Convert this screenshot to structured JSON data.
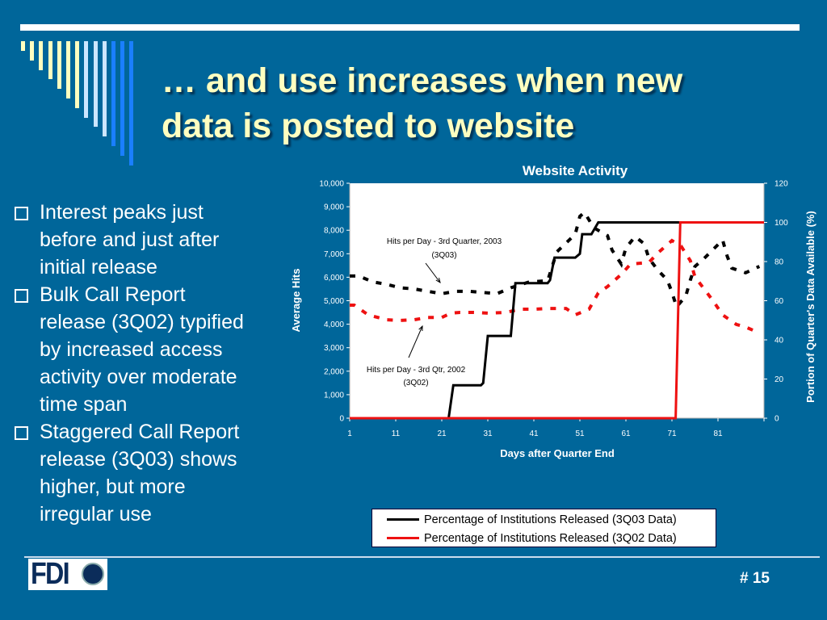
{
  "slide": {
    "title_line1": "… and use increases when new",
    "title_line2": "data is posted to website",
    "bullets": [
      [
        "Interest peaks just",
        "before and just after",
        "initial release"
      ],
      [
        "Bulk Call Report",
        "release (3Q02) typified",
        "by increased access",
        "activity over moderate",
        "time span"
      ],
      [
        "Staggered Call Report",
        "release (3Q03) shows",
        "higher, but more",
        "irregular use"
      ]
    ],
    "logo_text": "FDIC",
    "page_number": "# 15"
  },
  "colors": {
    "background": "#00669a",
    "title": "#ffffc0",
    "series_3q03": "#000000",
    "series_3q02": "#ee1111"
  },
  "chart_data": {
    "type": "line",
    "title": "Website Activity",
    "xlabel": "Days after Quarter End",
    "ylabel": "Average Hits",
    "ylabel_right": "Portion of Quarter's Data Available (%)",
    "xlim": [
      1,
      91
    ],
    "ylim": [
      0,
      10000
    ],
    "ylim_right": [
      0,
      120
    ],
    "x_ticks": [
      "1",
      "11",
      "21",
      "31",
      "41",
      "51",
      "61",
      "71",
      "81"
    ],
    "y_ticks": [
      "0",
      "1,000",
      "2,000",
      "3,000",
      "4,000",
      "5,000",
      "6,000",
      "7,000",
      "8,000",
      "9,000",
      "10,000"
    ],
    "y_ticks_right": [
      "0",
      "20",
      "40",
      "60",
      "80",
      "100",
      "120"
    ],
    "grid": false,
    "legend_position": "bottom",
    "annotations": [
      {
        "line1": "Hits per Day - 3rd Quarter, 2003",
        "line2": "(3Q03)"
      },
      {
        "line1": "Hits per Day - 3rd Qtr, 2002",
        "line2": "(3Q02)"
      }
    ],
    "series": [
      {
        "name": "Hits per Day - 3rd Quarter, 2003 (3Q03)",
        "axis": "left",
        "style": "dashed",
        "color": "#000000",
        "x": [
          1,
          3,
          6,
          9,
          12,
          15,
          18,
          21,
          24,
          27,
          30,
          33,
          36,
          40,
          44,
          46,
          50,
          51,
          52,
          54,
          57,
          58,
          60,
          61,
          63,
          65,
          66,
          68,
          70,
          71,
          72,
          74,
          75,
          76,
          78,
          81,
          82,
          83,
          84,
          87,
          90
        ],
        "y": [
          6050,
          6050,
          5800,
          5700,
          5550,
          5500,
          5400,
          5300,
          5400,
          5400,
          5350,
          5300,
          5550,
          5800,
          5850,
          7080,
          7830,
          8590,
          8760,
          8110,
          7770,
          7150,
          6560,
          7250,
          7730,
          7420,
          6800,
          6290,
          5880,
          5360,
          4740,
          5190,
          5880,
          6460,
          6800,
          7390,
          7590,
          6900,
          6390,
          6190,
          6460
        ]
      },
      {
        "name": "Hits per Day - 3rd Qtr, 2002 (3Q02)",
        "axis": "left",
        "style": "dashed",
        "color": "#ee1111",
        "x": [
          1,
          2,
          5,
          9,
          12,
          15,
          18,
          21,
          23,
          25,
          28,
          31,
          35,
          38,
          41,
          44,
          48,
          50,
          53,
          55,
          57,
          60,
          62,
          66,
          68,
          71,
          73,
          75,
          76,
          78,
          80,
          82,
          85,
          87,
          89
        ],
        "y": [
          4810,
          4810,
          4400,
          4190,
          4160,
          4190,
          4290,
          4290,
          4470,
          4500,
          4500,
          4470,
          4500,
          4640,
          4640,
          4670,
          4670,
          4400,
          4640,
          5330,
          5600,
          6120,
          6560,
          6630,
          7040,
          7560,
          7320,
          6700,
          6010,
          5500,
          4980,
          4400,
          3990,
          3880,
          3710
        ]
      },
      {
        "name": "Percentage of Institutions Released (3Q03 Data)",
        "axis": "right",
        "style": "solid",
        "color": "#000000",
        "x": [
          1,
          22.5,
          23.5,
          29.5,
          30,
          31,
          36,
          37,
          44,
          44.5,
          45.5,
          50,
          51,
          51.5,
          53.5,
          55,
          91
        ],
        "y": [
          0,
          0,
          16.8,
          16.8,
          18,
          42,
          42,
          69,
          69,
          70.5,
          82,
          82,
          84,
          94,
          94,
          100,
          100
        ]
      },
      {
        "name": "Percentage of Institutions Released (3Q02 Data)",
        "axis": "right",
        "style": "solid",
        "color": "#ee1111",
        "x": [
          1,
          71.8,
          72.8,
          91
        ],
        "y": [
          0,
          0,
          100,
          100
        ]
      }
    ],
    "legend": [
      "Percentage of Institutions Released (3Q03 Data)",
      "Percentage of Institutions Released (3Q02 Data)"
    ]
  }
}
